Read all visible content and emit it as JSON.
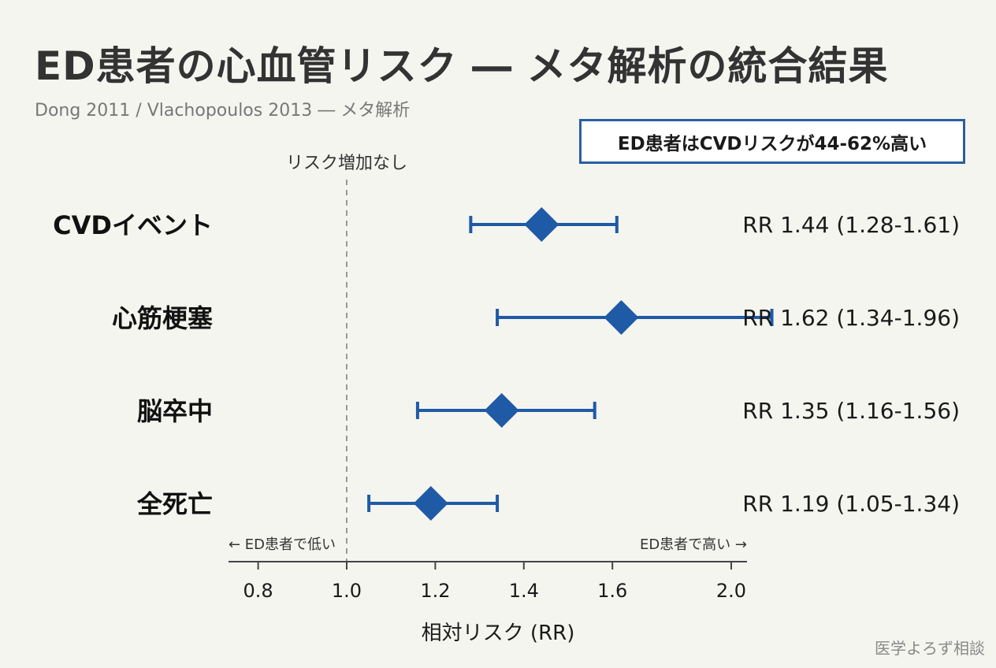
{
  "title": "ED患者の心血管リスク ― メタ解析の統合結果",
  "subtitle": "Dong 2011 / Vlachopoulos 2013 ― メタ解析",
  "callout": "ED患者はCVDリスクが44-62%高い",
  "watermark": "医学よろず相談",
  "colors": {
    "accent": "#1f5aa6",
    "reference_line": "#999999",
    "background": "#f5f5f0"
  },
  "chart_data": {
    "type": "forest",
    "reference_value": 1.0,
    "reference_label": "リスク増加なし",
    "xlabel": "相対リスク (RR)",
    "xlim": [
      0.725,
      2.0
    ],
    "xticks": [
      0.8,
      1.0,
      1.2,
      1.4,
      1.6,
      2.0
    ],
    "xtick_labels": [
      "0.8",
      "1.0",
      "1.2",
      "1.4",
      "1.6",
      "2.0"
    ],
    "direction_left": "← ED患者で低い",
    "direction_right": "ED患者で高い →",
    "rows": [
      {
        "label": "CVDイベント",
        "rr": 1.44,
        "ci": [
          1.28,
          1.61
        ],
        "text": "RR 1.44 (1.28-1.61)",
        "bold": true
      },
      {
        "label": "心筋梗塞",
        "rr": 1.62,
        "ci": [
          1.34,
          1.96
        ],
        "text": "RR 1.62 (1.34-1.96)",
        "bold": false
      },
      {
        "label": "脳卒中",
        "rr": 1.35,
        "ci": [
          1.16,
          1.56
        ],
        "text": "RR 1.35 (1.16-1.56)",
        "bold": false
      },
      {
        "label": "全死亡",
        "rr": 1.19,
        "ci": [
          1.05,
          1.34
        ],
        "text": "RR 1.19 (1.05-1.34)",
        "bold": false
      }
    ]
  }
}
